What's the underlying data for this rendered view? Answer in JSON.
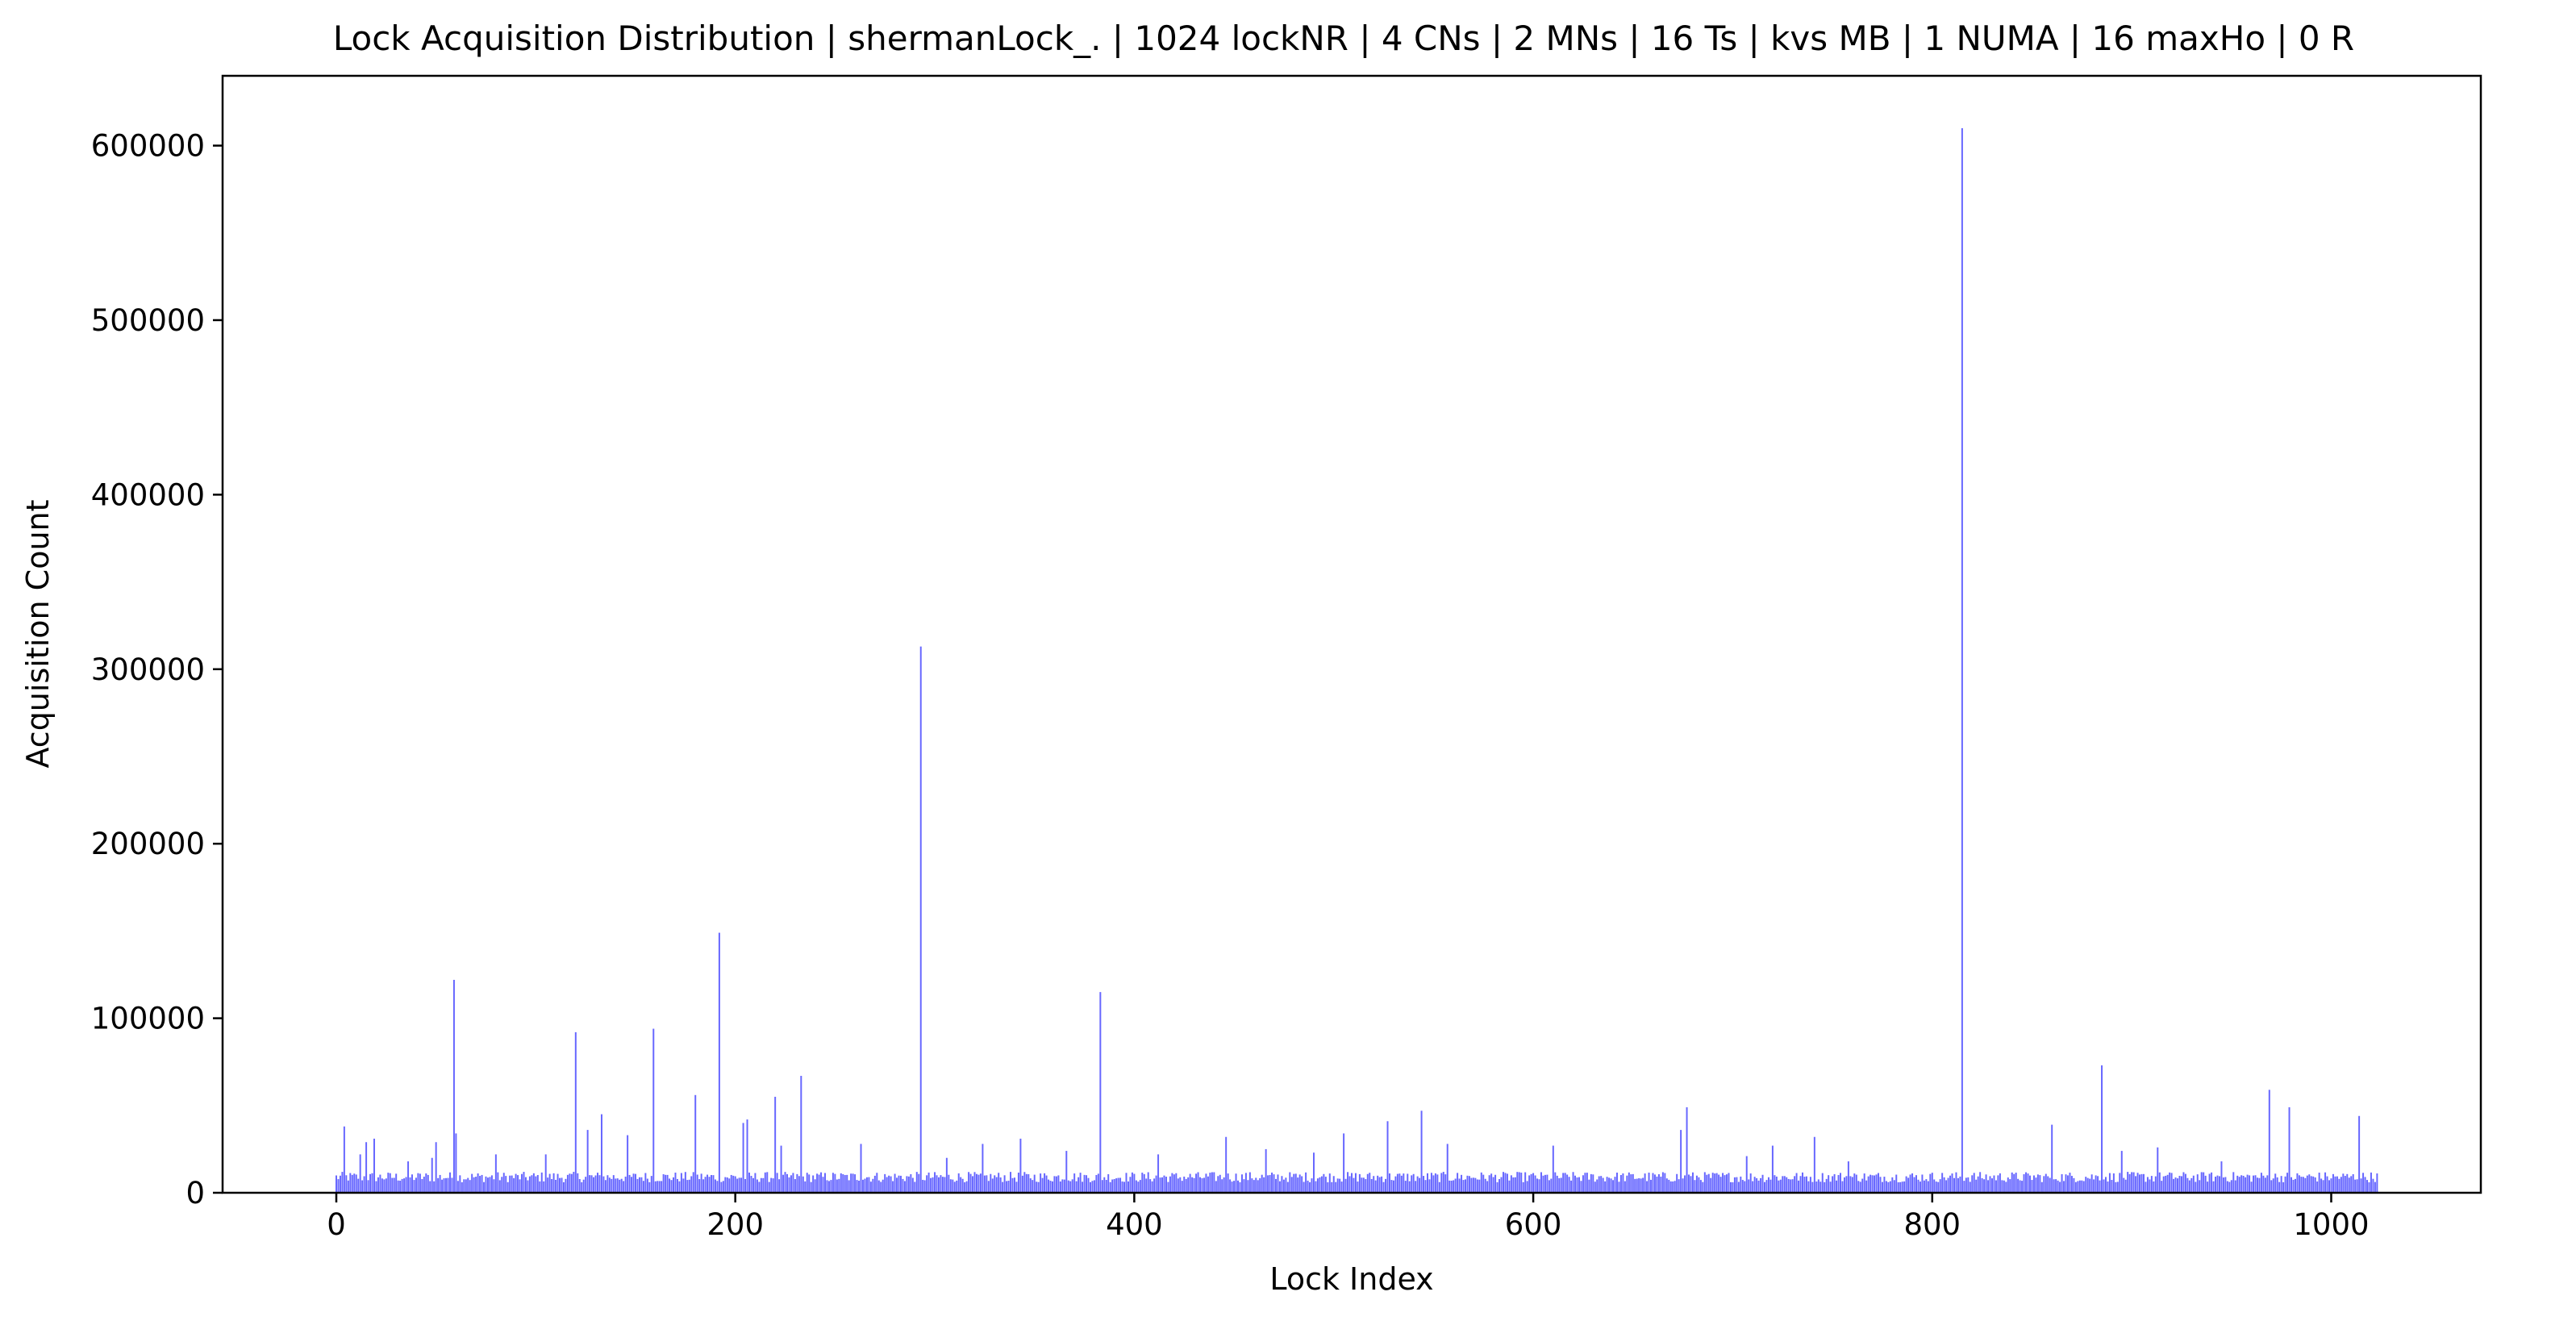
{
  "chart_data": {
    "type": "bar",
    "title": "Lock Acquisition Distribution | shermanLock_. | 1024 lockNR | 4 CNs | 2 MNs | 16 Ts | kvs MB | 1 NUMA | 16 maxHo | 0 R",
    "xlabel": "Lock Index",
    "ylabel": "Acquisition Count",
    "xlim": [
      -57,
      1075
    ],
    "ylim": [
      0,
      640000
    ],
    "xticks": [
      0,
      200,
      400,
      600,
      800,
      1000
    ],
    "yticks": [
      0,
      100000,
      200000,
      300000,
      400000,
      500000,
      600000
    ],
    "bar_color": "#0000ff",
    "grid": false,
    "legend": "none",
    "n_locks": 1024,
    "baseline_level": 10000,
    "peaks": [
      {
        "x": 4,
        "y": 38000
      },
      {
        "x": 12,
        "y": 22000
      },
      {
        "x": 15,
        "y": 29000
      },
      {
        "x": 19,
        "y": 31000
      },
      {
        "x": 36,
        "y": 18000
      },
      {
        "x": 48,
        "y": 20000
      },
      {
        "x": 50,
        "y": 29000
      },
      {
        "x": 59,
        "y": 122000
      },
      {
        "x": 60,
        "y": 34000
      },
      {
        "x": 80,
        "y": 22000
      },
      {
        "x": 105,
        "y": 22000
      },
      {
        "x": 120,
        "y": 92000
      },
      {
        "x": 126,
        "y": 36000
      },
      {
        "x": 133,
        "y": 45000
      },
      {
        "x": 146,
        "y": 33000
      },
      {
        "x": 159,
        "y": 94000
      },
      {
        "x": 180,
        "y": 56000
      },
      {
        "x": 192,
        "y": 149000
      },
      {
        "x": 204,
        "y": 40000
      },
      {
        "x": 206,
        "y": 42000
      },
      {
        "x": 220,
        "y": 55000
      },
      {
        "x": 223,
        "y": 27000
      },
      {
        "x": 233,
        "y": 67000
      },
      {
        "x": 263,
        "y": 28000
      },
      {
        "x": 293,
        "y": 313000
      },
      {
        "x": 306,
        "y": 20000
      },
      {
        "x": 324,
        "y": 28000
      },
      {
        "x": 343,
        "y": 31000
      },
      {
        "x": 366,
        "y": 24000
      },
      {
        "x": 383,
        "y": 115000
      },
      {
        "x": 412,
        "y": 22000
      },
      {
        "x": 446,
        "y": 32000
      },
      {
        "x": 466,
        "y": 25000
      },
      {
        "x": 490,
        "y": 23000
      },
      {
        "x": 505,
        "y": 34000
      },
      {
        "x": 527,
        "y": 41000
      },
      {
        "x": 544,
        "y": 47000
      },
      {
        "x": 557,
        "y": 28000
      },
      {
        "x": 610,
        "y": 27000
      },
      {
        "x": 674,
        "y": 36000
      },
      {
        "x": 677,
        "y": 49000
      },
      {
        "x": 707,
        "y": 21000
      },
      {
        "x": 720,
        "y": 27000
      },
      {
        "x": 741,
        "y": 32000
      },
      {
        "x": 758,
        "y": 18000
      },
      {
        "x": 815,
        "y": 610000
      },
      {
        "x": 860,
        "y": 39000
      },
      {
        "x": 885,
        "y": 73000
      },
      {
        "x": 895,
        "y": 24000
      },
      {
        "x": 913,
        "y": 26000
      },
      {
        "x": 945,
        "y": 18000
      },
      {
        "x": 969,
        "y": 59000
      },
      {
        "x": 979,
        "y": 49000
      },
      {
        "x": 1014,
        "y": 44000
      }
    ]
  }
}
